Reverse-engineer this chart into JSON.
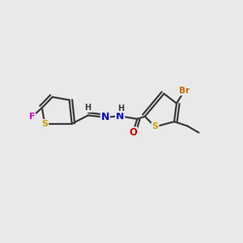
{
  "background_color": "#e9e9e9",
  "bond_color": "#3a3a3a",
  "atom_colors": {
    "S": "#c8a000",
    "F": "#cc00cc",
    "N": "#0000cc",
    "O": "#cc0000",
    "Br": "#cc6600",
    "C": "#3a3a3a",
    "H": "#3a3a3a"
  },
  "lw": 1.6
}
